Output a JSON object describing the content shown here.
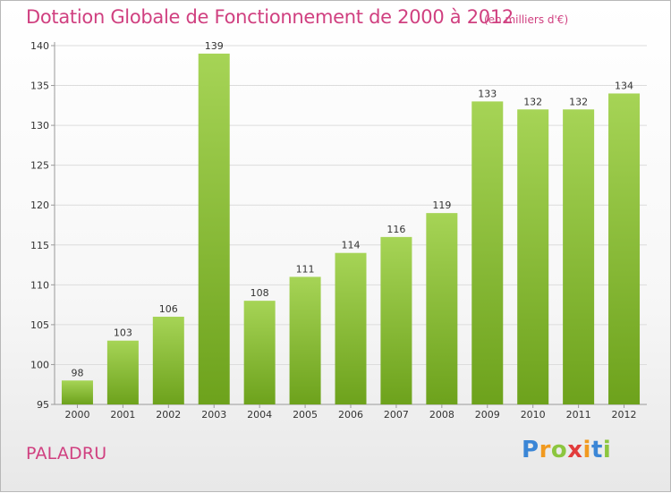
{
  "title": "Dotation Globale de Fonctionnement de 2000 à 2012",
  "subtitle": "(en milliers d'€)",
  "place": "PALADRU",
  "logo": {
    "p": "P",
    "r": "r",
    "o": "o",
    "x": "x",
    "i1": "i",
    "t": "t",
    "i2": "i"
  },
  "colors": {
    "bar_light": "#a6d456",
    "bar_dark": "#6da21c",
    "title": "#d04080"
  },
  "chart_data": {
    "type": "bar",
    "title": "Dotation Globale de Fonctionnement de 2000 à 2012",
    "subtitle": "(en milliers d'€)",
    "categories": [
      "2000",
      "2001",
      "2002",
      "2003",
      "2004",
      "2005",
      "2006",
      "2007",
      "2008",
      "2009",
      "2010",
      "2011",
      "2012"
    ],
    "values": [
      98,
      103,
      106,
      139,
      108,
      111,
      114,
      116,
      119,
      133,
      132,
      132,
      134
    ],
    "ylim": [
      95,
      140
    ],
    "yticks": [
      95,
      100,
      105,
      110,
      115,
      120,
      125,
      130,
      135,
      140
    ],
    "grid": true,
    "xlabel": "",
    "ylabel": ""
  }
}
